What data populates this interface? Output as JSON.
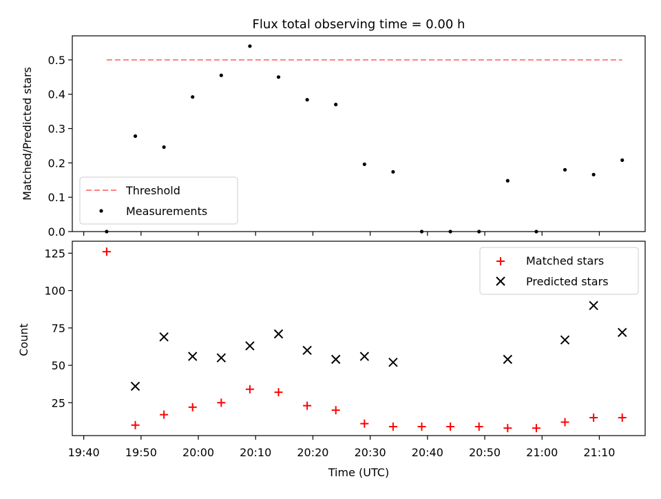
{
  "title": "Flux total observing time = 0.00 h",
  "chart_data": [
    {
      "type": "scatter",
      "ylabel": "Matched/Predicted stars",
      "ylim": [
        0,
        0.57
      ],
      "yticks": [
        "0.0",
        "0.1",
        "0.2",
        "0.3",
        "0.4",
        "0.5"
      ],
      "ytick_values": [
        0.0,
        0.1,
        0.2,
        0.3,
        0.4,
        0.5
      ],
      "xlim": [
        "19:38",
        "21:18"
      ],
      "threshold": {
        "name": "Threshold",
        "value": 0.5,
        "x_start": "19:44",
        "x_end": "21:14",
        "color": "#ff7f7f"
      },
      "series": [
        {
          "name": "Measurements",
          "color": "#000000",
          "x": [
            "19:44",
            "19:49",
            "19:54",
            "19:59",
            "20:04",
            "20:09",
            "20:14",
            "20:19",
            "20:24",
            "20:29",
            "20:34",
            "20:39",
            "20:44",
            "20:49",
            "20:54",
            "20:59",
            "21:04",
            "21:09",
            "21:14"
          ],
          "y": [
            0.0,
            0.278,
            0.246,
            0.392,
            0.455,
            0.54,
            0.45,
            0.384,
            0.37,
            0.196,
            0.174,
            0.0,
            0.0,
            0.0,
            0.148,
            0.0,
            0.18,
            0.166,
            0.208
          ]
        }
      ],
      "legend": {
        "position": "lower-left",
        "entries": [
          "Threshold",
          "Measurements"
        ]
      }
    },
    {
      "type": "scatter",
      "xlabel": "Time (UTC)",
      "ylabel": "Count",
      "ylim": [
        3,
        133
      ],
      "yticks": [
        "25",
        "50",
        "75",
        "100",
        "125"
      ],
      "ytick_values": [
        25,
        50,
        75,
        100,
        125
      ],
      "xlim": [
        "19:38",
        "21:18"
      ],
      "xticks": [
        "19:40",
        "19:50",
        "20:00",
        "20:10",
        "20:20",
        "20:30",
        "20:40",
        "20:50",
        "21:00",
        "21:10"
      ],
      "series": [
        {
          "name": "Matched stars",
          "marker": "+",
          "color": "#ff0000",
          "x": [
            "19:44",
            "19:49",
            "19:54",
            "19:59",
            "20:04",
            "20:09",
            "20:14",
            "20:19",
            "20:24",
            "20:29",
            "20:34",
            "20:39",
            "20:44",
            "20:49",
            "20:54",
            "20:59",
            "21:04",
            "21:09",
            "21:14"
          ],
          "y": [
            126,
            10,
            17,
            22,
            25,
            34,
            32,
            23,
            20,
            11,
            9,
            9,
            9,
            9,
            8,
            8,
            12,
            15,
            15
          ]
        },
        {
          "name": "Predicted stars",
          "marker": "x",
          "color": "#000000",
          "x": [
            "19:49",
            "19:54",
            "19:59",
            "20:04",
            "20:09",
            "20:14",
            "20:19",
            "20:24",
            "20:29",
            "20:34",
            "20:54",
            "21:04",
            "21:09",
            "21:14"
          ],
          "y": [
            36,
            69,
            56,
            55,
            63,
            71,
            60,
            54,
            56,
            52,
            54,
            67,
            90,
            72
          ]
        }
      ],
      "legend": {
        "position": "upper-right",
        "entries": [
          "Matched stars",
          "Predicted stars"
        ]
      }
    }
  ]
}
